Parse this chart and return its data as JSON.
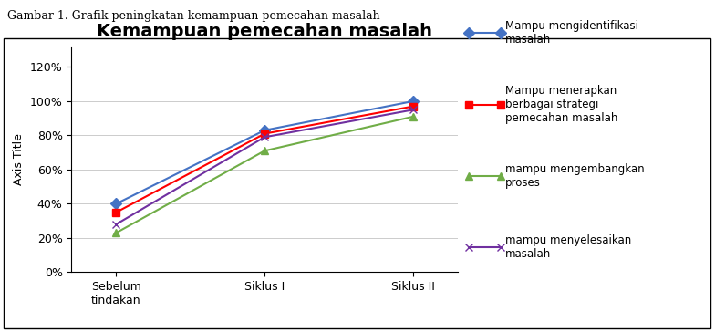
{
  "title": "Kemampuan pemecahan masalah",
  "ylabel": "Axis Title",
  "xlabel": "",
  "categories": [
    "Sebelum\ntindakan",
    "Siklus I",
    "Siklus II"
  ],
  "series": [
    {
      "label": "Mampu mengidentifikasi\nmasalah",
      "values": [
        0.4,
        0.83,
        1.0
      ],
      "color": "#4472C4",
      "marker": "D",
      "marker_color": "#4472C4"
    },
    {
      "label": "Mampu menerapkan\nberbagai strategi\npemecahan masalah",
      "values": [
        0.35,
        0.81,
        0.97
      ],
      "color": "#FF0000",
      "marker": "s",
      "marker_color": "#FF0000"
    },
    {
      "label": "mampu mengembangkan\nproses",
      "values": [
        0.23,
        0.71,
        0.91
      ],
      "color": "#70AD47",
      "marker": "^",
      "marker_color": "#70AD47"
    },
    {
      "label": "mampu menyelesaikan\nmasalah",
      "values": [
        0.28,
        0.79,
        0.95
      ],
      "color": "#7030A0",
      "marker": "x",
      "marker_color": "#7030A0"
    }
  ],
  "yticks": [
    0.0,
    0.2,
    0.4,
    0.6,
    0.8,
    1.0,
    1.2
  ],
  "background_color": "#FFFFFF",
  "title_fontsize": 14,
  "label_fontsize": 9,
  "tick_fontsize": 9,
  "legend_fontsize": 8.5,
  "top_label": "Gambar 1. Grafik peningkatan kemampuan pemecahan masalah"
}
